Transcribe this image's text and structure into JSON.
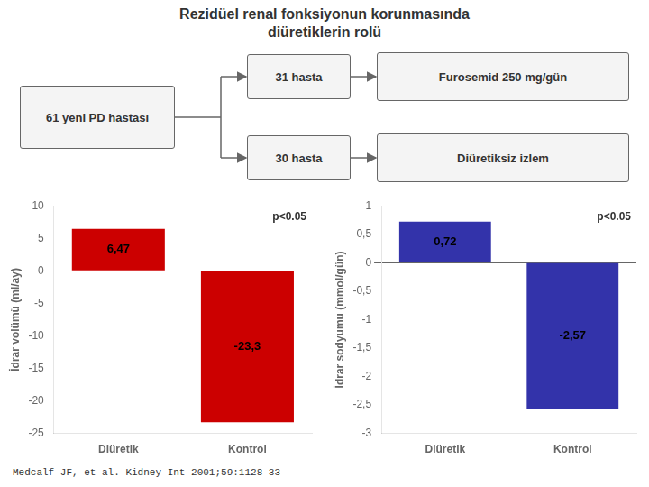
{
  "title": [
    "Rezidüel renal fonksiyonun korunmasında",
    "diüretiklerin rolü"
  ],
  "annotations": [
    "61 yeni PD hastası",
    "31 hasta",
    "30 hasta",
    "Furosemid 250 mg/gün",
    "Diüretiksiz izlem",
    "Medcalf JF, et al. Kidney Int 2001;59:1128-33"
  ],
  "chart_data": [
    {
      "type": "bar",
      "ylabel": "İdrar volümü (ml/ay)",
      "categories": [
        "Diüretik",
        "Kontrol"
      ],
      "values": [
        6.47,
        -23.3
      ],
      "value_labels": [
        "6,47",
        "-23,3"
      ],
      "data_labels": true,
      "color": "#CC0000",
      "ylim": [
        -25,
        10
      ],
      "yticks": [
        10,
        5,
        0,
        -5,
        -10,
        -15,
        -20,
        -25
      ],
      "grid": false,
      "annotations": [
        "p<0.05"
      ]
    },
    {
      "type": "bar",
      "ylabel": "İdrar sodyumu (mmol/gün)",
      "categories": [
        "Diüretik",
        "Kontrol"
      ],
      "values": [
        0.72,
        -2.57
      ],
      "value_labels": [
        "0,72",
        "-2,57"
      ],
      "data_labels": true,
      "color": "#3333AA",
      "ylim": [
        -3,
        1
      ],
      "yticks": [
        1,
        {
          "value": 0.5,
          "label": "0,5"
        },
        0,
        {
          "value": -0.5,
          "label": "-0,5"
        },
        -1,
        {
          "value": -1.5,
          "label": "-1,5"
        },
        -2,
        {
          "value": -2.5,
          "label": "-2,5"
        },
        -3
      ],
      "grid": false,
      "annotations": [
        "p<0.05"
      ]
    }
  ]
}
